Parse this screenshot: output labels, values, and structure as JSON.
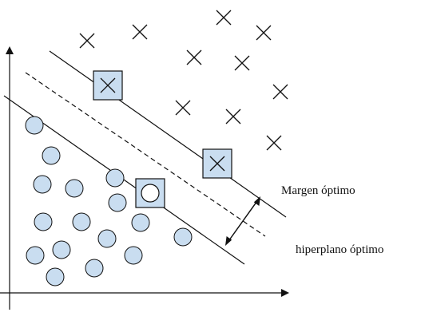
{
  "diagram": {
    "labels": {
      "optimal_margin": "Margen óptimo",
      "optimal_hyperplane": "hiperplano óptimo"
    },
    "colors": {
      "stroke": "#111111",
      "class_circle_fill": "#c9ddf0",
      "support_vector_fill": "#c9ddf0",
      "background": "#ffffff"
    },
    "classes": {
      "crosses": {
        "count": 13,
        "marker": "x-cross"
      },
      "circles": {
        "count": 19,
        "marker": "circle"
      }
    },
    "support_vectors": {
      "count": 3
    }
  }
}
